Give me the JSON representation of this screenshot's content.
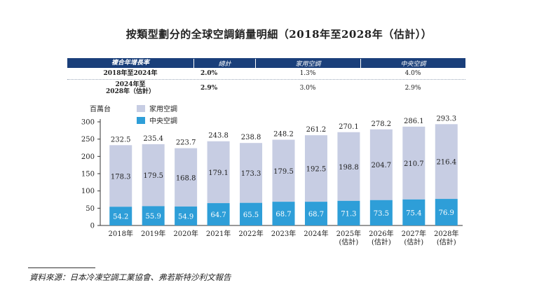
{
  "title": "按類型劃分的全球空調銷量明細（2018年至2028年（估計））",
  "growth_table": {
    "header": [
      "複合年增長率",
      "總計",
      "家用空調",
      "中央空調"
    ],
    "rows": [
      {
        "period": "2018年至2024年",
        "period_line2": "",
        "total": "2.0%",
        "household": "1.3%",
        "central": "4.0%"
      },
      {
        "period": "2024年至",
        "period_line2": "2028年（估計）",
        "total": "2.9%",
        "household": "3.0%",
        "central": "2.9%"
      }
    ]
  },
  "source": "資料來源：日本冷凍空調工業協會、弗若斯特沙利文報告",
  "chart_data": {
    "type": "bar",
    "stacked": true,
    "ylabel": "百萬台",
    "ylim": [
      0,
      300
    ],
    "yticks": [
      0,
      50,
      100,
      150,
      200,
      250,
      300
    ],
    "categories": [
      [
        "2018年"
      ],
      [
        "2019年"
      ],
      [
        "2020年"
      ],
      [
        "2021年"
      ],
      [
        "2022年"
      ],
      [
        "2023年"
      ],
      [
        "2024年"
      ],
      [
        "2025年",
        "(估計)"
      ],
      [
        "2026年",
        "(估計)"
      ],
      [
        "2027年",
        "(估計)"
      ],
      [
        "2028年",
        "(估計)"
      ]
    ],
    "series": [
      {
        "name": "中央空調",
        "color": "#2e9ed8",
        "values": [
          54.2,
          55.9,
          54.9,
          64.7,
          65.5,
          68.7,
          68.7,
          71.3,
          73.5,
          75.4,
          76.9
        ]
      },
      {
        "name": "家用空調",
        "color": "#c7cde3",
        "values": [
          178.3,
          179.5,
          168.8,
          179.1,
          173.3,
          179.5,
          192.5,
          198.8,
          204.7,
          210.7,
          216.4
        ]
      }
    ],
    "totals": [
      232.5,
      235.4,
      223.7,
      243.8,
      238.8,
      248.2,
      261.2,
      270.1,
      278.2,
      286.1,
      293.3
    ],
    "legend": [
      {
        "name": "家用空調",
        "color": "#c7cde3"
      },
      {
        "name": "中央空調",
        "color": "#2e9ed8"
      }
    ],
    "legend_position": "top-left"
  }
}
